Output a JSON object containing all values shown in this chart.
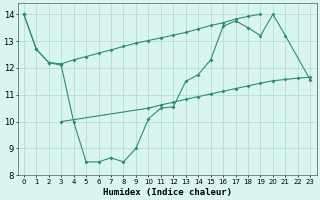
{
  "xlabel": "Humidex (Indice chaleur)",
  "line_color": "#2e8b77",
  "bg_color": "#d8f5f0",
  "grid_color": "#b8ddd8",
  "ylim": [
    8,
    14.4
  ],
  "xlim": [
    -0.5,
    23.5
  ],
  "yticks": [
    8,
    9,
    10,
    11,
    12,
    13,
    14
  ],
  "xtick_labels": [
    "0",
    "1",
    "2",
    "3",
    "4",
    "5",
    "6",
    "7",
    "8",
    "9",
    "10",
    "11",
    "12",
    "13",
    "14",
    "15",
    "16",
    "17",
    "18",
    "19",
    "20",
    "21",
    "22",
    "23"
  ],
  "line1_x": [
    0,
    1,
    2,
    3,
    4,
    5,
    6,
    7,
    8,
    9,
    10,
    11,
    12,
    13,
    14,
    15,
    16,
    17,
    18,
    19,
    20,
    21,
    23
  ],
  "line1_y": [
    14.0,
    12.7,
    12.2,
    12.1,
    10.0,
    8.5,
    8.5,
    8.65,
    8.5,
    9.0,
    10.1,
    10.5,
    10.55,
    11.5,
    11.75,
    12.3,
    13.55,
    13.75,
    13.5,
    13.2,
    14.0,
    13.2,
    11.55
  ],
  "line2_x": [
    0,
    1,
    2,
    3,
    4,
    5,
    6,
    7,
    8,
    9,
    10,
    11,
    12,
    13,
    14,
    15,
    16,
    17,
    18,
    19
  ],
  "line2_y": [
    14.0,
    12.7,
    12.2,
    12.15,
    12.3,
    12.42,
    12.55,
    12.67,
    12.8,
    12.92,
    13.02,
    13.12,
    13.22,
    13.32,
    13.45,
    13.58,
    13.68,
    13.82,
    13.92,
    14.0
  ],
  "line3_x": [
    3,
    10,
    11,
    12,
    13,
    14,
    15,
    16,
    17,
    18,
    19,
    20,
    21,
    22,
    23
  ],
  "line3_y": [
    10.0,
    10.5,
    10.62,
    10.72,
    10.83,
    10.93,
    11.03,
    11.13,
    11.23,
    11.33,
    11.43,
    11.52,
    11.57,
    11.62,
    11.65
  ]
}
